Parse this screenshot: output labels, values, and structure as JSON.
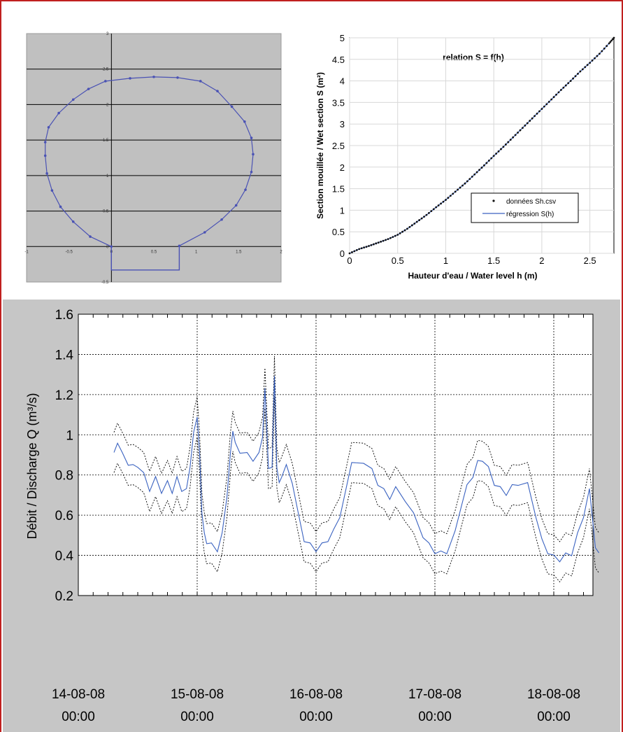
{
  "colors": {
    "frame": "#c0201f",
    "gray_panel": "#c0c0c0",
    "series_blue": "#3a62c0",
    "outline_blue": "#4a52b4",
    "band": "#000000"
  },
  "chart_data": [
    {
      "type": "line",
      "subtype": "cross-section-profile",
      "x_ticks": [
        "-1",
        "-0.5",
        "0",
        "0.5",
        "1",
        "1.5",
        "2"
      ],
      "y_ticks": [
        "-0.5",
        "0",
        "0.5",
        "1",
        "1.5",
        "2",
        "2.5",
        "3"
      ],
      "xlim": [
        -1,
        2
      ],
      "ylim": [
        -0.5,
        3
      ],
      "grid": "horizontal",
      "profile_points": [
        [
          0,
          0
        ],
        [
          -0.25,
          0.14
        ],
        [
          -0.45,
          0.35
        ],
        [
          -0.6,
          0.56
        ],
        [
          -0.7,
          0.79
        ],
        [
          -0.76,
          1.03
        ],
        [
          -0.78,
          1.28
        ],
        [
          -0.78,
          1.47
        ],
        [
          -0.74,
          1.68
        ],
        [
          -0.62,
          1.88
        ],
        [
          -0.45,
          2.07
        ],
        [
          -0.27,
          2.22
        ],
        [
          -0.07,
          2.33
        ],
        [
          0.22,
          2.37
        ],
        [
          0.5,
          2.39
        ],
        [
          0.78,
          2.38
        ],
        [
          1.05,
          2.33
        ],
        [
          1.25,
          2.19
        ],
        [
          1.42,
          1.97
        ],
        [
          1.57,
          1.76
        ],
        [
          1.65,
          1.53
        ],
        [
          1.67,
          1.3
        ],
        [
          1.65,
          1.05
        ],
        [
          1.58,
          0.8
        ],
        [
          1.47,
          0.58
        ],
        [
          1.3,
          0.38
        ],
        [
          1.1,
          0.2
        ],
        [
          0.8,
          0.01
        ]
      ],
      "channel": [
        [
          0.8,
          0
        ],
        [
          0.8,
          -0.33
        ],
        [
          0,
          -0.33
        ],
        [
          0,
          0
        ]
      ]
    },
    {
      "type": "line",
      "title": "relation S = f(h)",
      "xlabel": "Hauteur d'eau / Water level h (m)",
      "ylabel": "Section mouillée / Wet section S (m²)",
      "xlim": [
        0,
        2.75
      ],
      "ylim": [
        0,
        5
      ],
      "x_ticks": [
        "0",
        "0.5",
        "1",
        "1.5",
        "2",
        "2.5"
      ],
      "y_ticks": [
        "0",
        "0.5",
        "1",
        "1.5",
        "2",
        "2.5",
        "3",
        "3.5",
        "4",
        "4.5",
        "5"
      ],
      "grid": "on",
      "legend_position": "bottom-right",
      "series": [
        {
          "name": "données Sh.csv",
          "style": "points",
          "x": [
            0,
            0.1,
            0.2,
            0.3,
            0.4,
            0.5,
            0.6,
            0.7,
            0.8,
            0.9,
            1.0,
            1.1,
            1.2,
            1.3,
            1.4,
            1.5,
            1.6,
            1.7,
            1.8,
            1.9,
            2.0,
            2.1,
            2.2,
            2.3,
            2.4,
            2.5,
            2.6,
            2.7,
            2.75
          ],
          "y": [
            0,
            0.1,
            0.17,
            0.25,
            0.33,
            0.43,
            0.57,
            0.73,
            0.89,
            1.07,
            1.24,
            1.43,
            1.62,
            1.83,
            2.04,
            2.26,
            2.47,
            2.69,
            2.91,
            3.13,
            3.35,
            3.57,
            3.79,
            4.0,
            4.22,
            4.42,
            4.63,
            4.87,
            5.0
          ]
        },
        {
          "name": "régression S(h)",
          "style": "line",
          "x": [
            0,
            0.1,
            0.2,
            0.3,
            0.4,
            0.5,
            0.6,
            0.7,
            0.8,
            0.9,
            1.0,
            1.1,
            1.2,
            1.3,
            1.4,
            1.5,
            1.6,
            1.7,
            1.8,
            1.9,
            2.0,
            2.1,
            2.2,
            2.3,
            2.4,
            2.5,
            2.6,
            2.7,
            2.75
          ],
          "y": [
            0,
            0.1,
            0.17,
            0.25,
            0.33,
            0.43,
            0.57,
            0.73,
            0.89,
            1.07,
            1.24,
            1.43,
            1.62,
            1.83,
            2.04,
            2.26,
            2.47,
            2.69,
            2.91,
            3.13,
            3.35,
            3.57,
            3.79,
            4.0,
            4.22,
            4.42,
            4.63,
            4.87,
            5.0
          ]
        }
      ]
    },
    {
      "type": "line",
      "ylabel": "Débit / Discharge Q (m³/s)",
      "ylim": [
        0.2,
        1.6
      ],
      "xlim_days": [
        0,
        4.5
      ],
      "y_ticks": [
        "0.2",
        "0.4",
        "0.6",
        "0.8",
        "1",
        "1.2",
        "1.4",
        "1.6"
      ],
      "x_ticks": [
        {
          "line1": "14-08-08",
          "line2": "00:00"
        },
        {
          "line1": "15-08-08",
          "line2": "00:00"
        },
        {
          "line1": "16-08-08",
          "line2": "00:00"
        },
        {
          "line1": "17-08-08",
          "line2": "00:00"
        },
        {
          "line1": "18-08-08",
          "line2": "00:00"
        }
      ],
      "grid": "on",
      "band_offset": 0.1,
      "series": [
        {
          "name": "Q",
          "style": "line",
          "x": [
            0.3,
            0.33,
            0.37,
            0.42,
            0.46,
            0.5,
            0.55,
            0.6,
            0.65,
            0.7,
            0.75,
            0.79,
            0.83,
            0.87,
            0.91,
            0.94,
            0.97,
            1.0,
            1.02,
            1.04,
            1.06,
            1.08,
            1.12,
            1.17,
            1.21,
            1.25,
            1.28,
            1.3,
            1.32,
            1.36,
            1.42,
            1.47,
            1.52,
            1.55,
            1.57,
            1.59,
            1.6,
            1.63,
            1.65,
            1.67,
            1.69,
            1.71,
            1.75,
            1.8,
            1.85,
            1.9,
            1.95,
            2.0,
            2.05,
            2.1,
            2.15,
            2.2,
            2.3,
            2.4,
            2.47,
            2.52,
            2.57,
            2.62,
            2.67,
            2.75,
            2.82,
            2.9,
            2.95,
            3.0,
            3.05,
            3.1,
            3.17,
            3.22,
            3.27,
            3.32,
            3.36,
            3.4,
            3.45,
            3.5,
            3.55,
            3.6,
            3.65,
            3.7,
            3.78,
            3.85,
            3.9,
            3.95,
            4.0,
            4.05,
            4.1,
            4.15,
            4.2,
            4.25,
            4.3,
            4.35,
            4.38
          ],
          "y": [
            0.9,
            0.97,
            0.9,
            0.86,
            0.84,
            0.85,
            0.8,
            0.73,
            0.78,
            0.72,
            0.76,
            0.72,
            0.78,
            0.73,
            0.72,
            0.85,
            1.0,
            1.1,
            0.9,
            0.62,
            0.5,
            0.47,
            0.45,
            0.43,
            0.5,
            0.7,
            0.9,
            1.03,
            0.95,
            0.92,
            0.9,
            0.88,
            0.9,
            1.0,
            1.22,
            0.98,
            0.82,
            0.85,
            1.28,
            0.85,
            0.75,
            0.8,
            0.84,
            0.77,
            0.6,
            0.48,
            0.45,
            0.43,
            0.45,
            0.48,
            0.52,
            0.6,
            0.85,
            0.87,
            0.82,
            0.76,
            0.72,
            0.69,
            0.73,
            0.68,
            0.6,
            0.5,
            0.45,
            0.42,
            0.41,
            0.42,
            0.51,
            0.65,
            0.74,
            0.8,
            0.86,
            0.88,
            0.83,
            0.76,
            0.73,
            0.71,
            0.74,
            0.76,
            0.75,
            0.6,
            0.47,
            0.42,
            0.39,
            0.38,
            0.4,
            0.41,
            0.5,
            0.6,
            0.72,
            0.45,
            0.4
          ]
        }
      ]
    }
  ]
}
